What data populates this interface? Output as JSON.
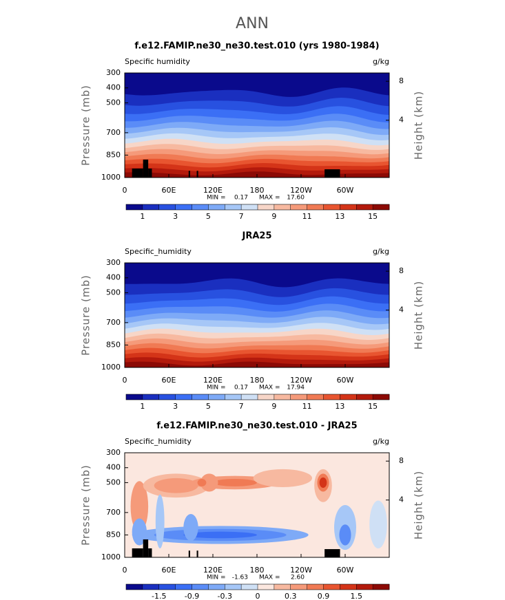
{
  "title": "ANN",
  "chart_data": [
    {
      "type": "contour",
      "field": "mean",
      "topography": true,
      "title": "f.e12.FAMIP.ne30_ne30.test.010 (yrs 1980-1984)",
      "subtitle_left": "Specific humidity",
      "subtitle_right": "g/kg",
      "y_label": "Pressure (mb)",
      "y2_label": "Height (km)",
      "ylim": [
        1000,
        300
      ],
      "yticks": [
        300,
        400,
        500,
        700,
        850,
        1000
      ],
      "y2ticks": [
        8,
        4
      ],
      "xlim": [
        0,
        360
      ],
      "xticks": [
        0,
        {
          "value": 60,
          "label": "60E"
        },
        {
          "value": 120,
          "label": "120E"
        },
        180,
        {
          "value": 240,
          "label": "120W"
        },
        {
          "value": 300,
          "label": "60W"
        }
      ],
      "min_text": "MIN =",
      "min": "0.17",
      "max_text": "MAX =",
      "max": "17.60",
      "colorbar": {
        "levels": [
          1,
          2,
          3,
          4,
          5,
          6,
          7,
          8,
          9,
          10,
          11,
          12,
          13,
          14,
          15
        ],
        "ticks": [
          1,
          3,
          5,
          7,
          9,
          11,
          13,
          15
        ],
        "colors": [
          "#0a0a8c",
          "#1a2fbf",
          "#2851e0",
          "#3b6ff5",
          "#5a8cf7",
          "#7eaaf7",
          "#a6c7f7",
          "#cfe0f5",
          "#f7d6c8",
          "#f7b9a0",
          "#f59a7a",
          "#f07a54",
          "#e85530",
          "#d43418",
          "#b31a0c",
          "#8c0a05"
        ]
      }
    },
    {
      "type": "contour",
      "field": "mean",
      "topography": false,
      "title": "JRA25",
      "subtitle_left": "Specific_humidity",
      "subtitle_right": "g/kg",
      "y_label": "Pressure (mb)",
      "y2_label": "Height (km)",
      "ylim": [
        1000,
        300
      ],
      "yticks": [
        300,
        400,
        500,
        700,
        850,
        1000
      ],
      "y2ticks": [
        8,
        4
      ],
      "xlim": [
        0,
        360
      ],
      "xticks": [
        0,
        {
          "value": 60,
          "label": "60E"
        },
        {
          "value": 120,
          "label": "120E"
        },
        180,
        {
          "value": 240,
          "label": "120W"
        },
        {
          "value": 300,
          "label": "60W"
        }
      ],
      "min_text": "MIN =",
      "min": "0.17",
      "max_text": "MAX =",
      "max": "17.94",
      "colorbar": {
        "levels": [
          1,
          2,
          3,
          4,
          5,
          6,
          7,
          8,
          9,
          10,
          11,
          12,
          13,
          14,
          15
        ],
        "ticks": [
          1,
          3,
          5,
          7,
          9,
          11,
          13,
          15
        ],
        "colors": [
          "#0a0a8c",
          "#1a2fbf",
          "#2851e0",
          "#3b6ff5",
          "#5a8cf7",
          "#7eaaf7",
          "#a6c7f7",
          "#cfe0f5",
          "#f7d6c8",
          "#f7b9a0",
          "#f59a7a",
          "#f07a54",
          "#e85530",
          "#d43418",
          "#b31a0c",
          "#8c0a05"
        ]
      }
    },
    {
      "type": "contour",
      "field": "difference",
      "topography": true,
      "title": "f.e12.FAMIP.ne30_ne30.test.010 - JRA25",
      "subtitle_left": "Specific_humidity",
      "subtitle_right": "g/kg",
      "y_label": "Pressure (mb)",
      "y2_label": "Height (km)",
      "ylim": [
        1000,
        300
      ],
      "yticks": [
        300,
        400,
        500,
        700,
        850,
        1000
      ],
      "y2ticks": [
        8,
        4
      ],
      "xlim": [
        0,
        360
      ],
      "xticks": [
        0,
        {
          "value": 60,
          "label": "60E"
        },
        {
          "value": 120,
          "label": "120E"
        },
        180,
        {
          "value": 240,
          "label": "120W"
        },
        {
          "value": 300,
          "label": "60W"
        }
      ],
      "min_text": "MIN =",
      "min": "-1.63",
      "max_text": "MAX =",
      "max": "2.60",
      "colorbar": {
        "levels": [
          -1.8,
          -1.5,
          -1.2,
          -0.9,
          -0.6,
          -0.3,
          -0.1,
          0,
          0.1,
          0.3,
          0.6,
          0.9,
          1.2,
          1.5,
          1.8
        ],
        "ticks": [
          -1.5,
          -0.9,
          -0.3,
          0,
          0.3,
          0.9,
          1.5
        ],
        "colors": [
          "#0a0a8c",
          "#1a2fbf",
          "#2851e0",
          "#3b6ff5",
          "#5a8cf7",
          "#7eaaf7",
          "#a6c7f7",
          "#cfe0f5",
          "#fbe7df",
          "#f7b9a0",
          "#f59a7a",
          "#f07a54",
          "#e85530",
          "#d43418",
          "#b31a0c",
          "#8c0a05"
        ]
      }
    }
  ]
}
